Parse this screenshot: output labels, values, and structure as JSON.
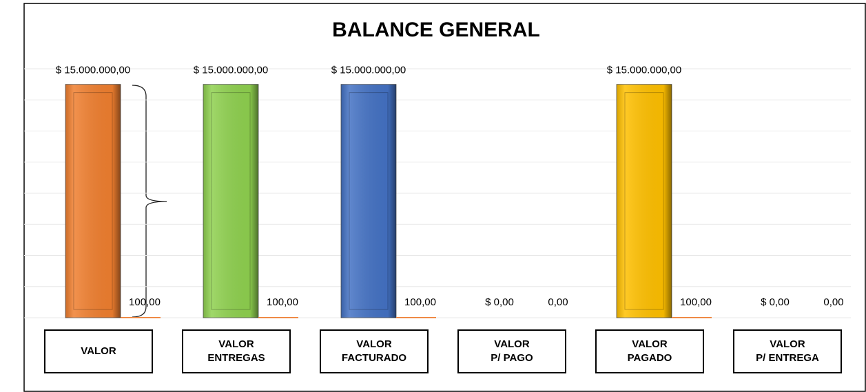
{
  "chart_data": {
    "type": "bar",
    "title": "BALANCE GENERAL",
    "categories": [
      "VALOR",
      "VALOR\nENTREGAS",
      "VALOR\nFACTURADO",
      "VALOR\nP/ PAGO",
      "VALOR\nPAGADO",
      "VALOR\nP/ ENTREGA"
    ],
    "series": [
      {
        "colors": [
          "#f07f2f",
          "#8fd14f",
          "#4472c4",
          "#999999",
          "#ffc000",
          "#999999"
        ],
        "values": [
          15000000,
          15000000,
          15000000,
          0,
          15000000,
          0
        ],
        "value_labels": [
          "$ 15.000.000,00",
          "$ 15.000.000,00",
          "$ 15.000.000,00",
          "$ 0,00",
          "$ 15.000.000,00",
          "$ 0,00"
        ]
      },
      {
        "color": "#ed7d31",
        "values": [
          100,
          100,
          100,
          0,
          100,
          0
        ],
        "value_labels": [
          "100,00",
          "100,00",
          "100,00",
          "0,00",
          "100,00",
          "0,00"
        ]
      }
    ],
    "ylim": [
      0,
      16000000
    ],
    "yticks": [
      0,
      2000000,
      4000000,
      6000000,
      8000000,
      10000000,
      12000000,
      14000000,
      16000000
    ],
    "grid": true
  }
}
